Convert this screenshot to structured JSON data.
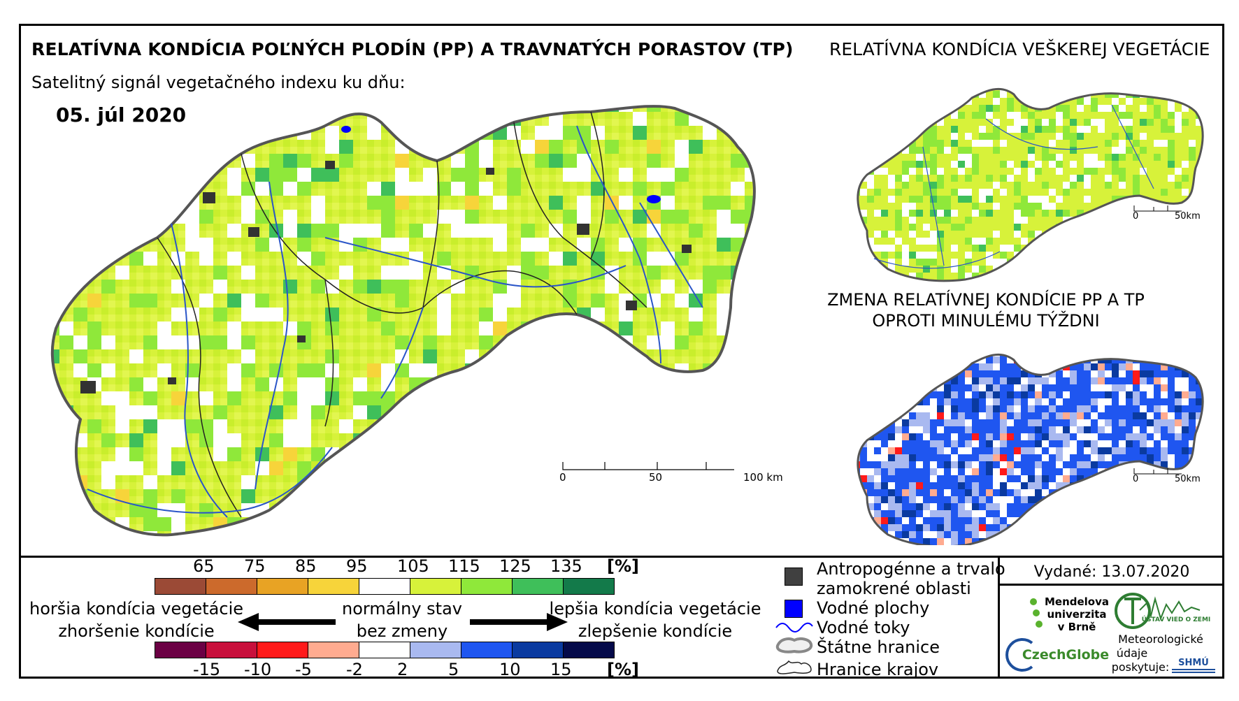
{
  "titles": {
    "main": "RELATÍVNA KONDÍCIA POĽNÝCH PLODÍN (PP) A TRAVNATÝCH PORASTOV (TP)",
    "subtitle": "Satelitný signál vegetačného indexu ku dňu:",
    "date": "05. júl 2020",
    "right_top": "RELATÍVNA KONDÍCIA VEŠKEREJ VEGETÁCIE",
    "change_line1": "ZMENA RELATÍVNEJ KONDÍCIE PP A TP",
    "change_line2": "OPROTI MINULÉMU TÝŽDNI"
  },
  "scalebars": {
    "main": [
      "0",
      "50",
      "100 km"
    ],
    "small1": [
      "0",
      "50km"
    ],
    "small2": [
      "0",
      "50km"
    ]
  },
  "legend": {
    "condition_unit": "[%]",
    "condition_ticks": [
      "65",
      "75",
      "85",
      "95",
      "105",
      "115",
      "125",
      "135"
    ],
    "condition_colors": [
      "#9b4a36",
      "#cc6a2c",
      "#e8a324",
      "#f7d43a",
      "#ffffff",
      "#d7f23a",
      "#8fe83a",
      "#3fbf5a",
      "#137a4a"
    ],
    "change_unit": "[%]",
    "change_ticks": [
      "-15",
      "-10",
      "-5",
      "-2",
      "2",
      "5",
      "10",
      "15"
    ],
    "change_colors": [
      "#6b0044",
      "#c8103c",
      "#ff1a1a",
      "#ffab90",
      "#ffffff",
      "#a9b9f0",
      "#1f56f0",
      "#0a3aa0",
      "#050a4a"
    ],
    "worse_condition": "horšia kondícia vegetácie",
    "worsening": "zhoršenie kondície",
    "normal": "normálny stav",
    "no_change": "bez zmeny",
    "better_condition": "lepšia kondícia vegetácie",
    "improvement": "zlepšenie kondície"
  },
  "map_legend": {
    "anthropogenic_1": "Antropogénne a trvalo",
    "anthropogenic_2": "zamokrené oblasti",
    "water_areas": "Vodné plochy",
    "rivers": "Vodné toky",
    "state_border": "Štátne hranice",
    "regions_border": "Hranice krajov",
    "anthro_color": "#404040",
    "water_color": "#0000ff"
  },
  "issued": "Vydané: 13.07.2020",
  "logos": {
    "mendel_1": "Mendelova",
    "mendel_2": "univerzita",
    "mendel_3": "v Brně",
    "czechglobe": "CzechGlobe",
    "ustav": "ÚSTAV VIED O ZEMI",
    "meteo_1": "Meteorologické",
    "meteo_2": "údaje",
    "meteo_3": "poskytuje:",
    "shmu": "SHMÚ"
  }
}
